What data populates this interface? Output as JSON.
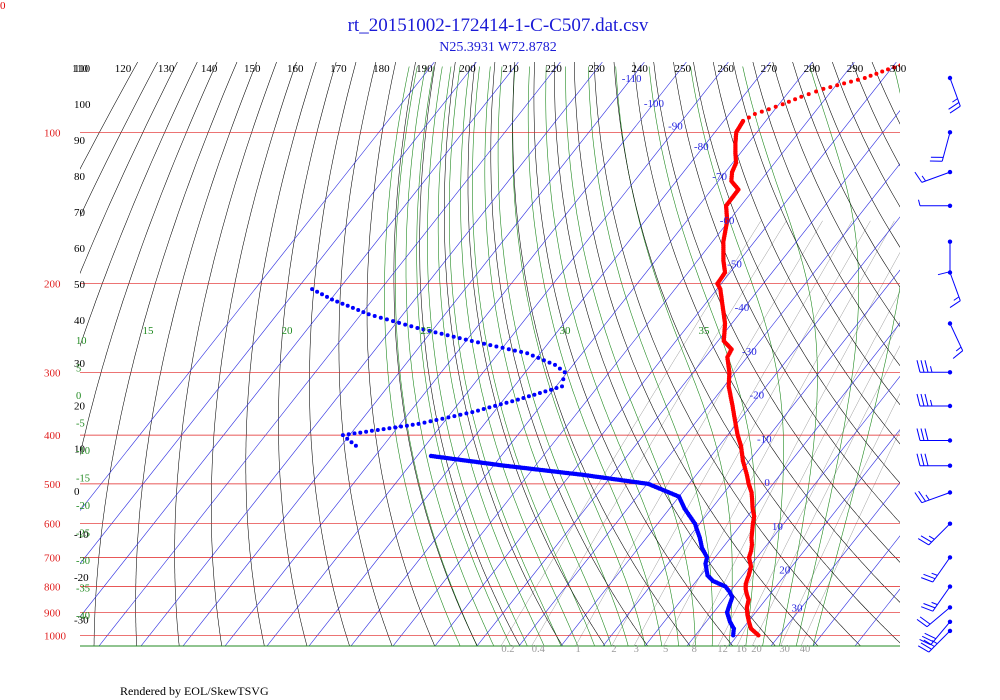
{
  "title": "rt_20151002-172414-1-C-C507.dat.csv",
  "subtitle": "N25.3931 W72.8782",
  "corner_label": "0",
  "footer": "Rendered by EOL/SkewTSVG",
  "colors": {
    "pressure": "#e02020",
    "isotherm": "#2828e0",
    "dry_adiabat": "#000000",
    "moist_adiabat": "#208a20",
    "mixing_ratio": "#9a9a9a",
    "temperature": "#ff0000",
    "dewpoint": "#0000ff",
    "wind": "#0000ff",
    "title": "#1b1bd6"
  },
  "chart_data": {
    "type": "skew-t",
    "pressure_levels": [
      100,
      200,
      300,
      400,
      500,
      600,
      700,
      800,
      900,
      1000
    ],
    "top_potential_temps": [
      110,
      120,
      130,
      140,
      150,
      160,
      170,
      180,
      190,
      200,
      210,
      220,
      230,
      240,
      250,
      260,
      270,
      280,
      290,
      300
    ],
    "isotherm_labels": [
      -110,
      -100,
      -90,
      -80,
      -70,
      -60,
      -50,
      -40,
      -30,
      -20,
      -10,
      0,
      10,
      20,
      30
    ],
    "left_temp_labels": [
      110,
      100,
      90,
      80,
      70,
      60,
      50,
      40,
      30,
      20,
      10,
      0,
      -10,
      -20,
      -30,
      -40
    ],
    "moist_labels_top": [
      15,
      20,
      25,
      30,
      35
    ],
    "moist_labels_left": [
      10,
      5,
      0,
      -5,
      -10,
      -15,
      -20,
      -25,
      -30,
      -35,
      -40
    ],
    "mixing_ratio_labels": [
      "0.2",
      "0.4",
      "1",
      "2",
      "3",
      "5",
      "8",
      "12",
      "16",
      "20",
      "30",
      "40"
    ],
    "temperature_profile": [
      [
        1000,
        25.0
      ],
      [
        970,
        22.0
      ],
      [
        940,
        20.2
      ],
      [
        910,
        18.5
      ],
      [
        880,
        17.0
      ],
      [
        850,
        16.0
      ],
      [
        830,
        14.6
      ],
      [
        810,
        13.3
      ],
      [
        790,
        12.3
      ],
      [
        760,
        11.4
      ],
      [
        730,
        10.3
      ],
      [
        700,
        8.1
      ],
      [
        680,
        7.4
      ],
      [
        660,
        6.4
      ],
      [
        640,
        5.0
      ],
      [
        600,
        2.7
      ],
      [
        580,
        1.6
      ],
      [
        560,
        -0.2
      ],
      [
        540,
        -1.8
      ],
      [
        520,
        -3.5
      ],
      [
        500,
        -5.8
      ],
      [
        480,
        -7.9
      ],
      [
        450,
        -11.5
      ],
      [
        420,
        -14.8
      ],
      [
        400,
        -17.6
      ],
      [
        380,
        -20.2
      ],
      [
        350,
        -24.3
      ],
      [
        320,
        -28.9
      ],
      [
        300,
        -31.4
      ],
      [
        280,
        -34.7
      ],
      [
        270,
        -35.2
      ],
      [
        260,
        -38.6
      ],
      [
        240,
        -41.6
      ],
      [
        220,
        -45.8
      ],
      [
        205,
        -49.2
      ],
      [
        200,
        -50.9
      ],
      [
        190,
        -51.2
      ],
      [
        180,
        -53.8
      ],
      [
        165,
        -57.4
      ],
      [
        150,
        -60.4
      ],
      [
        140,
        -63.5
      ],
      [
        130,
        -63.6
      ],
      [
        125,
        -66.9
      ],
      [
        120,
        -68.4
      ],
      [
        115,
        -69.2
      ],
      [
        110,
        -71.2
      ],
      [
        105,
        -73.1
      ],
      [
        100,
        -74.9
      ],
      [
        95,
        -75.4
      ],
      [
        92,
        -73.9
      ],
      [
        88,
        -69.1
      ],
      [
        85,
        -66.1
      ],
      [
        82,
        -62.3
      ],
      [
        78,
        -54.5
      ],
      [
        75,
        -50.6
      ],
      [
        73,
        -47.3
      ]
    ],
    "dewpoint_profile": [
      [
        1000,
        19.0
      ],
      [
        970,
        17.9
      ],
      [
        940,
        15.7
      ],
      [
        900,
        13.2
      ],
      [
        870,
        12.4
      ],
      [
        840,
        11.6
      ],
      [
        820,
        10.0
      ],
      [
        800,
        8.0
      ],
      [
        780,
        4.0
      ],
      [
        760,
        1.6
      ],
      [
        720,
        -1.1
      ],
      [
        700,
        -1.9
      ],
      [
        670,
        -4.9
      ],
      [
        640,
        -7.3
      ],
      [
        600,
        -11.1
      ],
      [
        560,
        -16.4
      ],
      [
        530,
        -20.0
      ],
      [
        500,
        -29.7
      ],
      [
        480,
        -46.7
      ],
      [
        460,
        -67.4
      ],
      [
        440,
        -86.7
      ],
      [
        420,
        -106.5
      ],
      [
        400,
        -111.6
      ],
      [
        380,
        -95.7
      ],
      [
        360,
        -85.1
      ],
      [
        340,
        -76.6
      ],
      [
        320,
        -68.6
      ],
      [
        300,
        -70.6
      ],
      [
        290,
        -74.3
      ],
      [
        275,
        -83.1
      ],
      [
        260,
        -98.6
      ],
      [
        245,
        -114.0
      ],
      [
        230,
        -128.2
      ],
      [
        215,
        -139.7
      ],
      [
        205,
        -146.4
      ]
    ],
    "wind_barbs": [
      {
        "pressure": 78,
        "speed_kt": 25,
        "direction": 160
      },
      {
        "pressure": 100,
        "speed_kt": 20,
        "direction": 195
      },
      {
        "pressure": 120,
        "speed_kt": 15,
        "direction": 250
      },
      {
        "pressure": 140,
        "speed_kt": 5,
        "direction": 270
      },
      {
        "pressure": 165,
        "speed_kt": 10,
        "direction": 180
      },
      {
        "pressure": 190,
        "speed_kt": 15,
        "direction": 160
      },
      {
        "pressure": 240,
        "speed_kt": 15,
        "direction": 155
      },
      {
        "pressure": 300,
        "speed_kt": 35,
        "direction": 270
      },
      {
        "pressure": 350,
        "speed_kt": 35,
        "direction": 270
      },
      {
        "pressure": 410,
        "speed_kt": 30,
        "direction": 270
      },
      {
        "pressure": 460,
        "speed_kt": 30,
        "direction": 270
      },
      {
        "pressure": 520,
        "speed_kt": 25,
        "direction": 250
      },
      {
        "pressure": 600,
        "speed_kt": 25,
        "direction": 225
      },
      {
        "pressure": 700,
        "speed_kt": 25,
        "direction": 215
      },
      {
        "pressure": 800,
        "speed_kt": 25,
        "direction": 215
      },
      {
        "pressure": 880,
        "speed_kt": 20,
        "direction": 230
      },
      {
        "pressure": 940,
        "speed_kt": 30,
        "direction": 220
      },
      {
        "pressure": 980,
        "speed_kt": 35,
        "direction": 225
      }
    ]
  }
}
